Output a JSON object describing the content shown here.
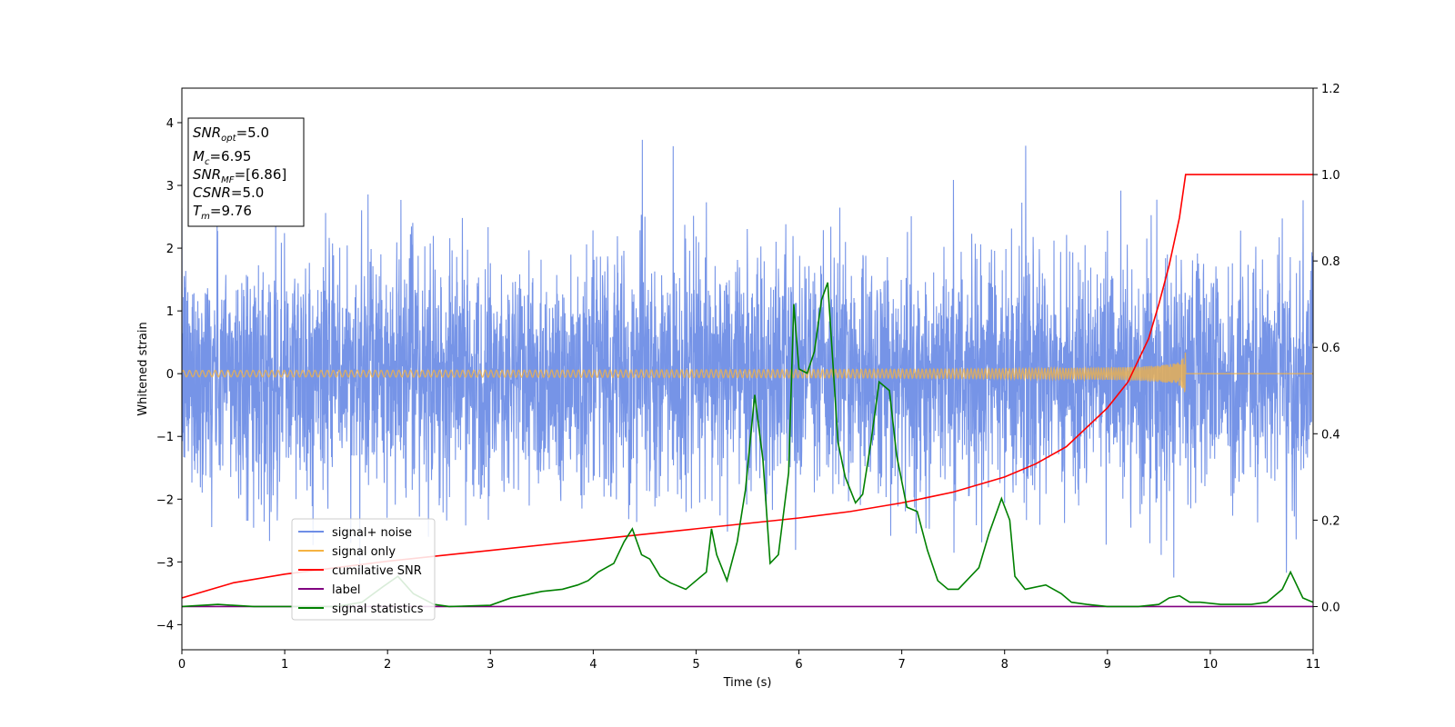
{
  "chart_data": {
    "type": "line",
    "xlabel": "Time (s)",
    "ylabel": "Whitened strain",
    "xlim": [
      0,
      11
    ],
    "ylim_left": [
      -4.4,
      4.55
    ],
    "ylim_right": [
      -0.1,
      1.2
    ],
    "x_ticks": [
      "0",
      "1",
      "2",
      "3",
      "4",
      "5",
      "6",
      "7",
      "8",
      "9",
      "10",
      "11"
    ],
    "y_left_ticks": [
      "−4",
      "−3",
      "−2",
      "−1",
      "0",
      "1",
      "2",
      "3",
      "4"
    ],
    "y_right_ticks": [
      "0.0",
      "0.2",
      "0.4",
      "0.6",
      "0.8",
      "1.0",
      "1.2"
    ],
    "info_box": {
      "snr_opt": {
        "base": "SNR",
        "sub": "opt",
        "value": "=5.0"
      },
      "mc": {
        "base": "M",
        "sub": "c",
        "value": "=6.95"
      },
      "snr_mf": {
        "base": "SNR",
        "sub": "MF",
        "value": "=[6.86]"
      },
      "csnr": {
        "base": "CSNR",
        "sub": "",
        "value": "=5.0"
      },
      "tm": {
        "base": "T",
        "sub": "m",
        "value": "=9.76"
      }
    },
    "legend_position": "lower-left",
    "series": [
      {
        "name": "signal+ noise",
        "color": "#6f8ee6",
        "axis": "left",
        "kind": "noise",
        "sigma": 0.95,
        "x_range": [
          0,
          11
        ]
      },
      {
        "name": "signal only",
        "color": "#f5b342",
        "axis": "left",
        "kind": "chirp",
        "t_merge": 9.76
      },
      {
        "name": "cumilative SNR",
        "color": "#ff0000",
        "axis": "right",
        "x": [
          0,
          0.5,
          1,
          1.5,
          2,
          3,
          4,
          5,
          6,
          6.5,
          7,
          7.5,
          8,
          8.3,
          8.6,
          9.0,
          9.2,
          9.4,
          9.5,
          9.6,
          9.7,
          9.76,
          11
        ],
        "values": [
          0.02,
          0.055,
          0.075,
          0.09,
          0.105,
          0.13,
          0.155,
          0.18,
          0.205,
          0.22,
          0.24,
          0.265,
          0.3,
          0.33,
          0.37,
          0.46,
          0.52,
          0.62,
          0.7,
          0.79,
          0.9,
          1.0,
          1.0
        ]
      },
      {
        "name": "label",
        "color": "#800080",
        "axis": "right",
        "x": [
          0,
          11
        ],
        "values": [
          0,
          0
        ]
      },
      {
        "name": "signal statistics",
        "color": "#008000",
        "axis": "right",
        "x": [
          0,
          0.35,
          0.7,
          1.1,
          1.5,
          1.75,
          1.95,
          2.1,
          2.25,
          2.45,
          2.6,
          3.0,
          3.2,
          3.5,
          3.7,
          3.85,
          3.95,
          4.05,
          4.2,
          4.3,
          4.38,
          4.47,
          4.55,
          4.65,
          4.75,
          4.9,
          5.0,
          5.1,
          5.15,
          5.2,
          5.3,
          5.4,
          5.48,
          5.57,
          5.65,
          5.72,
          5.8,
          5.9,
          5.95,
          6.0,
          6.08,
          6.15,
          6.22,
          6.28,
          6.38,
          6.45,
          6.55,
          6.62,
          6.7,
          6.78,
          6.88,
          6.95,
          7.05,
          7.15,
          7.25,
          7.35,
          7.45,
          7.55,
          7.75,
          7.85,
          7.97,
          8.05,
          8.1,
          8.2,
          8.4,
          8.55,
          8.65,
          8.8,
          9.0,
          9.3,
          9.5,
          9.6,
          9.7,
          9.8,
          9.9,
          10.1,
          10.4,
          10.55,
          10.7,
          10.78,
          10.9,
          11.0
        ],
        "values": [
          0.0,
          0.005,
          0.0,
          0.0,
          0.0,
          0.01,
          0.045,
          0.07,
          0.03,
          0.005,
          0.0,
          0.003,
          0.02,
          0.035,
          0.04,
          0.05,
          0.06,
          0.08,
          0.1,
          0.15,
          0.18,
          0.12,
          0.11,
          0.07,
          0.055,
          0.04,
          0.06,
          0.08,
          0.18,
          0.12,
          0.06,
          0.15,
          0.27,
          0.49,
          0.34,
          0.1,
          0.12,
          0.31,
          0.7,
          0.55,
          0.54,
          0.59,
          0.71,
          0.75,
          0.38,
          0.3,
          0.24,
          0.26,
          0.38,
          0.52,
          0.5,
          0.35,
          0.23,
          0.22,
          0.13,
          0.06,
          0.04,
          0.04,
          0.09,
          0.17,
          0.25,
          0.2,
          0.07,
          0.04,
          0.05,
          0.03,
          0.01,
          0.005,
          0.0,
          0.0,
          0.005,
          0.02,
          0.025,
          0.01,
          0.01,
          0.005,
          0.005,
          0.01,
          0.04,
          0.08,
          0.02,
          0.01
        ]
      }
    ]
  }
}
